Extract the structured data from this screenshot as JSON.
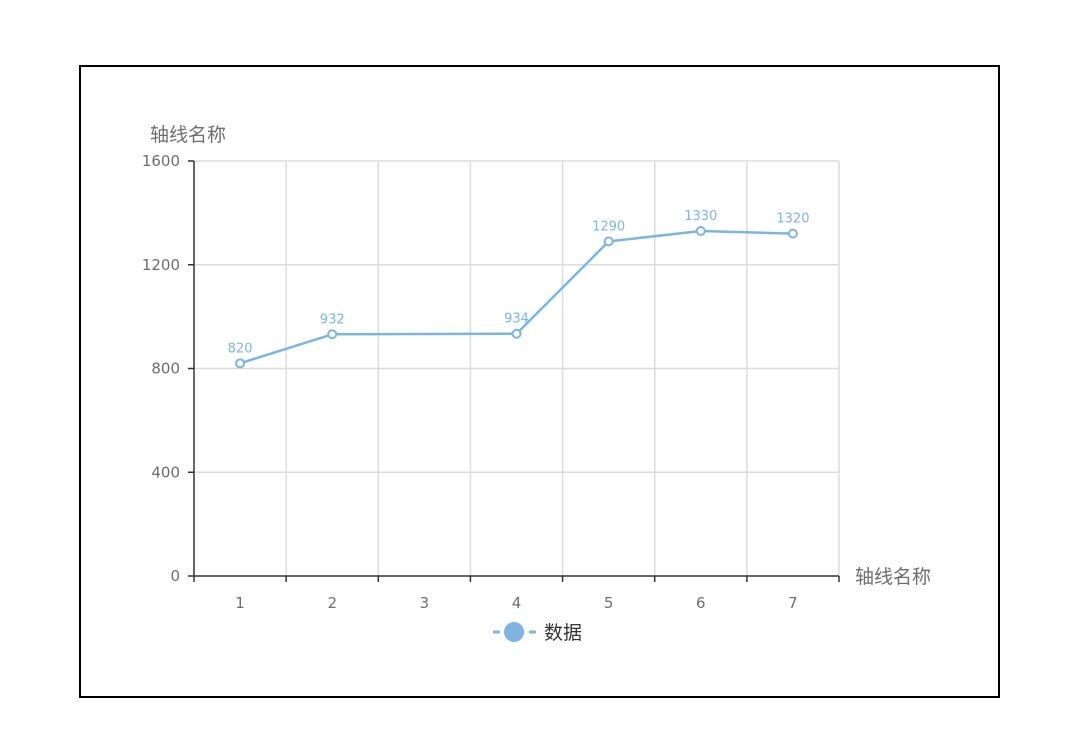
{
  "chart_data": {
    "type": "line",
    "x_categories": [
      "1",
      "2",
      "3",
      "4",
      "5",
      "6",
      "7"
    ],
    "points": [
      {
        "x": "1",
        "y": 820
      },
      {
        "x": "2",
        "y": 932
      },
      {
        "x": "4",
        "y": 934
      },
      {
        "x": "5",
        "y": 1290
      },
      {
        "x": "6",
        "y": 1330
      },
      {
        "x": "7",
        "y": 1320
      }
    ],
    "series": [
      {
        "name": "数据",
        "color": "#7eb4e2"
      }
    ],
    "xlabel": "轴线名称",
    "ylabel": "轴线名称",
    "ylim": [
      0,
      1600
    ],
    "yticks": [
      0,
      400,
      800,
      1200,
      1600
    ],
    "grid": true,
    "legend_position": "bottom-center",
    "show_data_labels": true
  }
}
